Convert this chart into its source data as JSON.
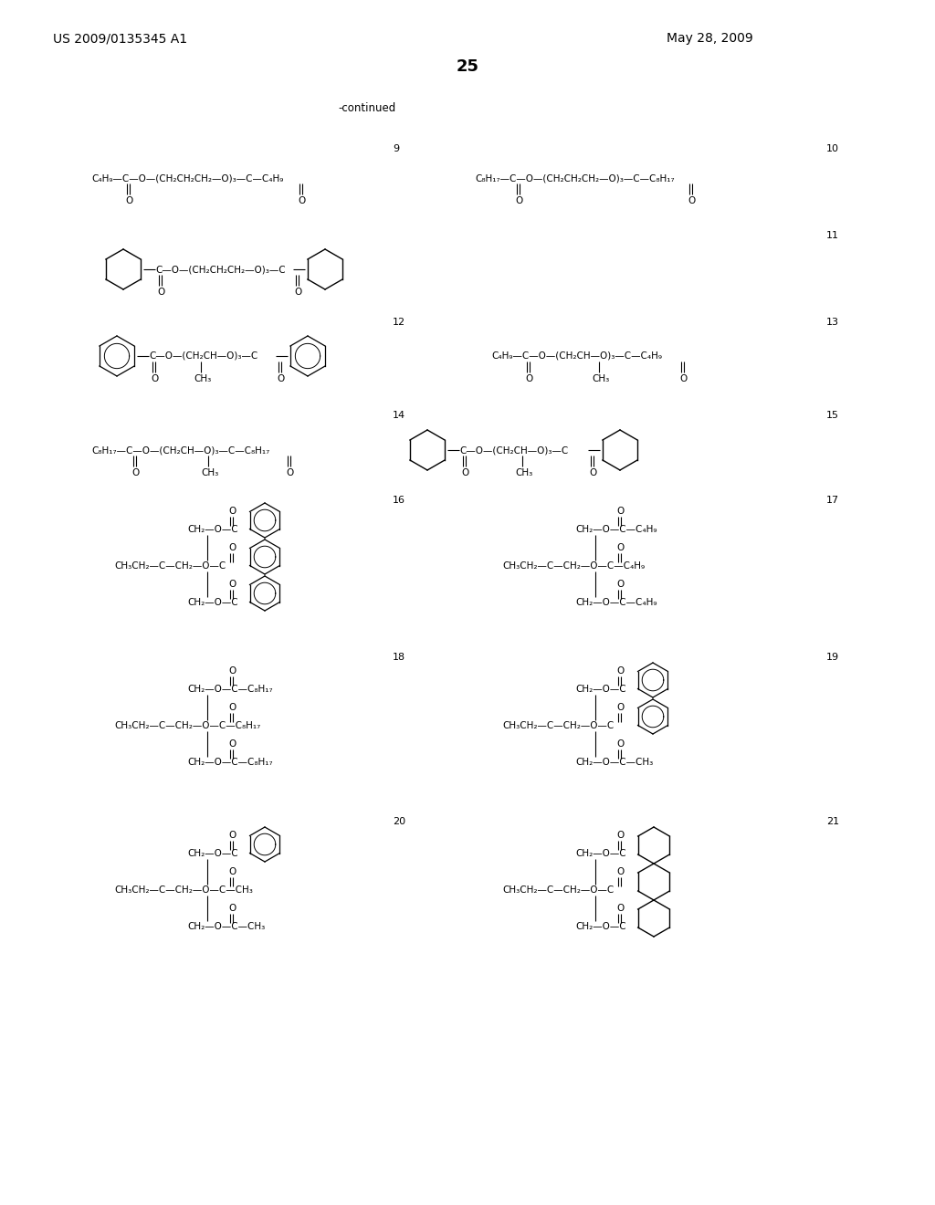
{
  "page_number": "25",
  "header_left": "US 2009/0135345 A1",
  "header_right": "May 28, 2009",
  "continued_label": "-continued",
  "bg": "#ffffff",
  "fg": "#000000"
}
